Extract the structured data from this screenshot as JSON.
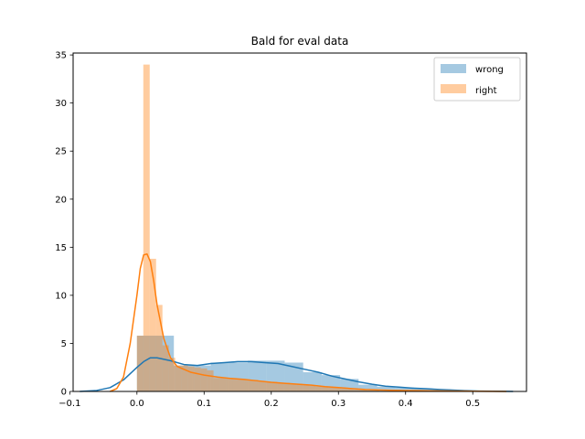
{
  "chart_data": {
    "type": "histogram",
    "title": "Bald for eval data",
    "xlabel": "",
    "ylabel": "",
    "xlim": [
      -0.095,
      0.58
    ],
    "ylim": [
      0,
      35.2
    ],
    "xticks": [
      -0.1,
      0.0,
      0.1,
      0.2,
      0.3,
      0.4,
      0.5
    ],
    "xtick_labels": [
      "−0.1",
      "0.0",
      "0.1",
      "0.2",
      "0.3",
      "0.4",
      "0.5"
    ],
    "yticks": [
      0,
      5,
      10,
      15,
      20,
      25,
      30,
      35
    ],
    "ytick_labels": [
      "0",
      "5",
      "10",
      "15",
      "20",
      "25",
      "30",
      "35"
    ],
    "grid": false,
    "legend": "top-right",
    "series": [
      {
        "name": "wrong",
        "color": "#1f77b4",
        "bar_alpha": 0.4,
        "bin_width": 0.0275,
        "bins": [
          [
            0.0,
            5.8
          ],
          [
            0.0275,
            5.8
          ],
          [
            0.055,
            2.7
          ],
          [
            0.0825,
            2.7
          ],
          [
            0.11,
            3.0
          ],
          [
            0.1375,
            3.0
          ],
          [
            0.165,
            3.2
          ],
          [
            0.1925,
            3.2
          ],
          [
            0.22,
            3.0
          ],
          [
            0.2475,
            2.0
          ],
          [
            0.275,
            1.7
          ],
          [
            0.3025,
            1.3
          ],
          [
            0.33,
            0.7
          ],
          [
            0.3575,
            0.5
          ],
          [
            0.385,
            0.4
          ],
          [
            0.4125,
            0.3
          ],
          [
            0.44,
            0.2
          ],
          [
            0.4675,
            0.1
          ],
          [
            0.495,
            0.05
          ]
        ],
        "kde_x": [
          -0.085,
          -0.06,
          -0.04,
          -0.02,
          0.0,
          0.01,
          0.02,
          0.03,
          0.05,
          0.07,
          0.09,
          0.11,
          0.13,
          0.15,
          0.17,
          0.19,
          0.21,
          0.23,
          0.25,
          0.27,
          0.29,
          0.31,
          0.33,
          0.35,
          0.37,
          0.39,
          0.41,
          0.43,
          0.45,
          0.47,
          0.49,
          0.51,
          0.53,
          0.56
        ],
        "kde_y": [
          0.0,
          0.1,
          0.4,
          1.2,
          2.5,
          3.1,
          3.5,
          3.5,
          3.2,
          2.8,
          2.7,
          2.9,
          3.0,
          3.1,
          3.1,
          3.0,
          2.9,
          2.6,
          2.3,
          2.0,
          1.6,
          1.3,
          1.0,
          0.75,
          0.55,
          0.45,
          0.35,
          0.28,
          0.2,
          0.14,
          0.08,
          0.04,
          0.02,
          0.0
        ]
      },
      {
        "name": "right",
        "color": "#ff7f0e",
        "bar_alpha": 0.4,
        "bin_width": 0.0095,
        "bins": [
          [
            0.0,
            5.8
          ],
          [
            0.0095,
            34.0
          ],
          [
            0.019,
            13.8
          ],
          [
            0.0285,
            9.0
          ],
          [
            0.038,
            4.8
          ],
          [
            0.0475,
            3.5
          ],
          [
            0.057,
            2.7
          ],
          [
            0.0665,
            2.7
          ],
          [
            0.076,
            2.6
          ],
          [
            0.0855,
            2.5
          ],
          [
            0.095,
            2.4
          ],
          [
            0.1045,
            2.2
          ],
          [
            0.114,
            1.4
          ],
          [
            0.1235,
            1.4
          ],
          [
            0.133,
            1.4
          ],
          [
            0.1425,
            1.3
          ],
          [
            0.152,
            1.3
          ],
          [
            0.1615,
            1.2
          ],
          [
            0.171,
            1.2
          ],
          [
            0.1805,
            1.1
          ],
          [
            0.19,
            1.0
          ],
          [
            0.1995,
            1.0
          ],
          [
            0.209,
            0.9
          ],
          [
            0.2185,
            0.9
          ],
          [
            0.228,
            0.8
          ],
          [
            0.2375,
            0.8
          ],
          [
            0.247,
            0.7
          ],
          [
            0.2565,
            0.6
          ],
          [
            0.266,
            0.5
          ],
          [
            0.2755,
            0.5
          ],
          [
            0.285,
            0.4
          ],
          [
            0.2945,
            0.4
          ],
          [
            0.304,
            0.3
          ],
          [
            0.3135,
            0.3
          ],
          [
            0.323,
            0.2
          ],
          [
            0.3325,
            0.2
          ],
          [
            0.342,
            0.1
          ],
          [
            0.3515,
            0.1
          ]
        ],
        "kde_x": [
          -0.04,
          -0.03,
          -0.02,
          -0.01,
          0.0,
          0.005,
          0.01,
          0.015,
          0.02,
          0.025,
          0.03,
          0.04,
          0.05,
          0.06,
          0.08,
          0.1,
          0.12,
          0.14,
          0.16,
          0.18,
          0.2,
          0.22,
          0.24,
          0.26,
          0.28,
          0.3,
          0.32,
          0.34,
          0.36,
          0.38,
          0.4,
          0.42,
          0.44,
          0.46,
          0.48,
          0.5,
          0.52,
          0.55
        ],
        "kde_y": [
          0.0,
          0.3,
          1.5,
          5.0,
          10.0,
          12.8,
          14.2,
          14.3,
          13.5,
          11.5,
          9.0,
          5.5,
          3.5,
          2.6,
          2.0,
          1.7,
          1.5,
          1.35,
          1.25,
          1.1,
          0.95,
          0.85,
          0.75,
          0.65,
          0.5,
          0.4,
          0.3,
          0.2,
          0.15,
          0.12,
          0.1,
          0.08,
          0.06,
          0.05,
          0.04,
          0.02,
          0.01,
          0.0
        ]
      }
    ]
  }
}
